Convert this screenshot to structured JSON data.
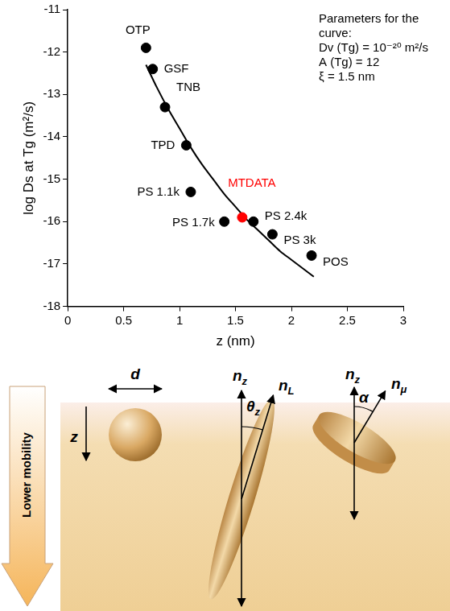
{
  "chart_data": {
    "type": "scatter",
    "xlabel": "z (nm)",
    "ylabel": "log Ds at Tg (m²/s)",
    "xlim": [
      0,
      3
    ],
    "xticks": [
      0,
      0.5,
      1,
      1.5,
      2,
      2.5,
      3
    ],
    "ylim": [
      -18,
      -11
    ],
    "yticks": [
      -18,
      -17,
      -16,
      -15,
      -14,
      -13,
      -12,
      -11
    ],
    "grid": false,
    "annotation": [
      "Parameters for the",
      "curve:",
      "Dv (Tg) = 10⁻²⁰ m²/s",
      "A (Tg) = 12",
      "ξ = 1.5 nm"
    ],
    "series": [
      {
        "type": "scatter",
        "marker": "circle",
        "point_labels": [
          "OTP",
          "GSF",
          "TNB",
          "TPD",
          "PS 1.1k",
          "PS 1.7k",
          "MTDATA",
          "PS 2.4k",
          "PS 3k",
          "POS"
        ],
        "x": [
          0.7,
          0.76,
          0.87,
          1.06,
          1.1,
          1.4,
          1.56,
          1.66,
          1.83,
          2.18
        ],
        "values": [
          -11.9,
          -12.4,
          -13.3,
          -14.2,
          -15.3,
          -16.0,
          -15.9,
          -16.0,
          -16.3,
          -16.8
        ],
        "colors": [
          "#000000",
          "#000000",
          "#000000",
          "#000000",
          "#000000",
          "#000000",
          "#ff0000",
          "#000000",
          "#000000",
          "#000000"
        ]
      },
      {
        "type": "line",
        "color": "#000000",
        "line_style": "solid",
        "marker": "none",
        "x": [
          0.7,
          0.8,
          0.9,
          1.0,
          1.1,
          1.2,
          1.3,
          1.4,
          1.5,
          1.6,
          1.7,
          1.8,
          1.9,
          2.0,
          2.1,
          2.2
        ],
        "values": [
          -12.3,
          -12.85,
          -13.35,
          -13.8,
          -14.25,
          -14.65,
          -15.0,
          -15.35,
          -15.65,
          -15.95,
          -16.2,
          -16.45,
          -16.7,
          -16.9,
          -17.1,
          -17.3
        ]
      }
    ]
  },
  "diagram": {
    "arrow_label": "Lower mobility",
    "sphere": {
      "size_label": "d",
      "depth_label": "z"
    },
    "rod": {
      "normal": {
        "base": "n",
        "sub": "z"
      },
      "axis": {
        "base": "n",
        "sub": "L"
      },
      "angle": {
        "base": "θ",
        "sub": "z"
      }
    },
    "disk": {
      "normal": {
        "base": "n",
        "sub": "z"
      },
      "axis": {
        "base": "n",
        "sub": "μ"
      },
      "angle": {
        "base": "α"
      }
    }
  }
}
